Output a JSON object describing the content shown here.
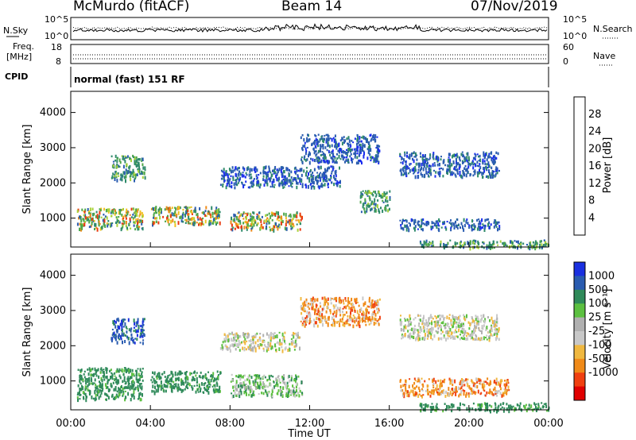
{
  "header": {
    "station": "McMurdo (fitACF)",
    "beam": "Beam 14",
    "date": "07/Nov/2019"
  },
  "noise_panel": {
    "left_label": "N.Sky",
    "right_label": "N.Search",
    "ticks": [
      "10^5",
      "10^0"
    ]
  },
  "freq_panel": {
    "left_label_line1": "Freq.",
    "left_label_line2": "[MHz]",
    "left_ticks": [
      "18",
      "8"
    ],
    "right_label": "Nave",
    "right_ticks": [
      "60",
      "0"
    ]
  },
  "cpid_panel": {
    "label": "CPID",
    "text": "normal (fast) 151 RF"
  },
  "colors": {
    "power_scale": [
      "#1a2cf0",
      "#2a5cb0",
      "#2f8a6a",
      "#4fa74a",
      "#a8d23a",
      "#f0c020",
      "#f08a18",
      "#e83a10",
      "#e00000"
    ],
    "velocity_scale": [
      "#e00000",
      "#f04010",
      "#f08a18",
      "#f0b840",
      "#c8c8c8",
      "#b0b0b0",
      "#5cc040",
      "#2f8a5a",
      "#2a5cb0",
      "#1a30e0"
    ]
  },
  "chart_data": [
    {
      "type": "heatmap",
      "quantity": "Power",
      "ylabel": "Slant Range [km]",
      "yticks": [
        "1000",
        "2000",
        "3000",
        "4000"
      ],
      "ylim": [
        180,
        4600
      ],
      "xlim": [
        0,
        24
      ],
      "colorbar": {
        "label": "Power [dB]",
        "ticks": [
          "4",
          "8",
          "12",
          "16",
          "20",
          "24",
          "28"
        ],
        "range": [
          0,
          32
        ]
      },
      "regions": [
        {
          "t0": 0.3,
          "t1": 3.6,
          "r0": 700,
          "r1": 1300,
          "level": "mid-high"
        },
        {
          "t0": 4.0,
          "t1": 7.5,
          "r0": 850,
          "r1": 1350,
          "level": "mid-high"
        },
        {
          "t0": 8.0,
          "t1": 11.6,
          "r0": 700,
          "r1": 1200,
          "level": "mid-high"
        },
        {
          "t0": 2.0,
          "t1": 3.7,
          "r0": 2100,
          "r1": 2800,
          "level": "mid"
        },
        {
          "t0": 7.5,
          "t1": 13.5,
          "r0": 1900,
          "r1": 2500,
          "level": "low"
        },
        {
          "t0": 11.5,
          "t1": 15.5,
          "r0": 2600,
          "r1": 3400,
          "level": "low"
        },
        {
          "t0": 14.5,
          "t1": 16.0,
          "r0": 1200,
          "r1": 1800,
          "level": "mid"
        },
        {
          "t0": 16.5,
          "t1": 21.5,
          "r0": 2200,
          "r1": 2900,
          "level": "low"
        },
        {
          "t0": 16.5,
          "t1": 21.5,
          "r0": 700,
          "r1": 1000,
          "level": "low"
        },
        {
          "t0": 17.5,
          "t1": 24.0,
          "r0": 180,
          "r1": 400,
          "level": "mid"
        }
      ]
    },
    {
      "type": "heatmap",
      "quantity": "Velocity",
      "ylabel": "Slant Range [km]",
      "xlabel": "Time UT",
      "xticks": [
        "00:00",
        "04:00",
        "08:00",
        "12:00",
        "16:00",
        "20:00",
        "00:00"
      ],
      "yticks": [
        "1000",
        "2000",
        "3000",
        "4000"
      ],
      "ylim": [
        180,
        4600
      ],
      "xlim": [
        0,
        24
      ],
      "colorbar": {
        "label": "Velocity [m s⁻¹]",
        "ticks": [
          "1000",
          "500",
          "100",
          "25",
          "-25",
          "-100",
          "-500",
          "-1000"
        ]
      },
      "regions": [
        {
          "t0": 0.3,
          "t1": 3.6,
          "r0": 500,
          "r1": 1400,
          "level": "green"
        },
        {
          "t0": 4.0,
          "t1": 7.5,
          "r0": 700,
          "r1": 1300,
          "level": "green"
        },
        {
          "t0": 8.0,
          "t1": 11.6,
          "r0": 600,
          "r1": 1200,
          "level": "green-light"
        },
        {
          "t0": 2.0,
          "t1": 3.7,
          "r0": 2100,
          "r1": 2800,
          "level": "blue"
        },
        {
          "t0": 7.5,
          "t1": 11.5,
          "r0": 1900,
          "r1": 2400,
          "level": "grey"
        },
        {
          "t0": 11.5,
          "t1": 15.5,
          "r0": 2600,
          "r1": 3400,
          "level": "orange"
        },
        {
          "t0": 16.5,
          "t1": 21.5,
          "r0": 2200,
          "r1": 2900,
          "level": "grey"
        },
        {
          "t0": 16.5,
          "t1": 22.0,
          "r0": 600,
          "r1": 1100,
          "level": "orange"
        },
        {
          "t0": 17.5,
          "t1": 24.0,
          "r0": 180,
          "r1": 400,
          "level": "green"
        }
      ]
    }
  ]
}
